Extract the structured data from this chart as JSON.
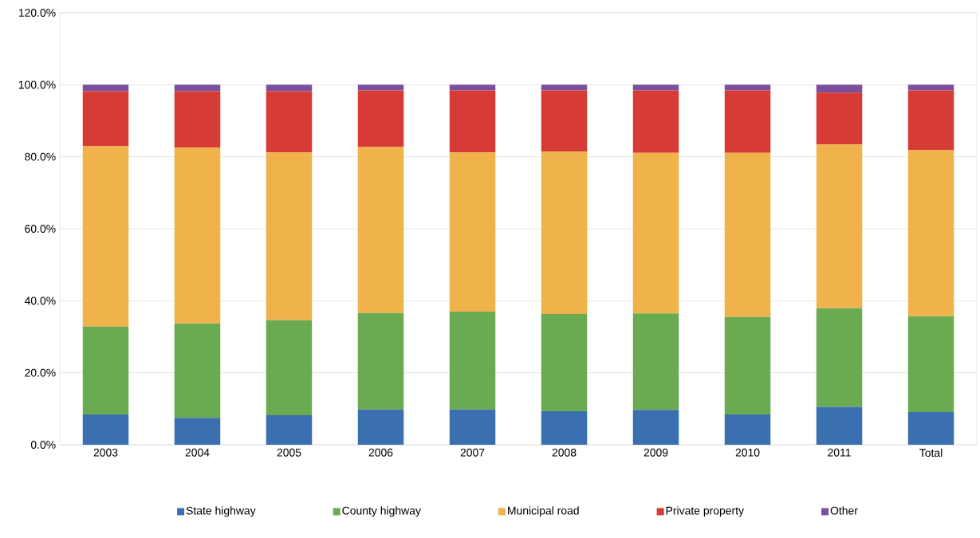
{
  "chart_data": {
    "type": "bar",
    "stacked": true,
    "categories": [
      "2003",
      "2004",
      "2005",
      "2006",
      "2007",
      "2008",
      "2009",
      "2010",
      "2011",
      "Total"
    ],
    "series": [
      {
        "name": "State highway",
        "color": "#3a6fb0",
        "values": [
          8.4,
          7.5,
          8.2,
          9.8,
          9.8,
          9.3,
          9.7,
          8.4,
          10.5,
          9.1
        ]
      },
      {
        "name": "County highway",
        "color": "#6aaa50",
        "values": [
          24.4,
          26.2,
          26.4,
          26.8,
          27.2,
          27.0,
          26.8,
          27.1,
          27.4,
          26.6
        ]
      },
      {
        "name": "Municipal road",
        "color": "#f0b24a",
        "values": [
          50.1,
          48.8,
          46.6,
          46.1,
          44.2,
          45.1,
          44.6,
          45.6,
          45.5,
          46.1
        ]
      },
      {
        "name": "Private property",
        "color": "#d63b36",
        "values": [
          15.3,
          15.7,
          17.0,
          15.7,
          17.2,
          17.0,
          17.3,
          17.3,
          14.4,
          16.6
        ]
      },
      {
        "name": "Other",
        "color": "#7b4f9e",
        "values": [
          1.8,
          1.8,
          1.8,
          1.6,
          1.6,
          1.6,
          1.6,
          1.6,
          2.2,
          1.6
        ]
      }
    ],
    "ylim": [
      0,
      120
    ],
    "yticks": [
      {
        "value": 0,
        "label": "0.0%"
      },
      {
        "value": 20,
        "label": "20.0%"
      },
      {
        "value": 40,
        "label": "40.0%"
      },
      {
        "value": 60,
        "label": "60.0%"
      },
      {
        "value": 80,
        "label": "80.0%"
      },
      {
        "value": 100,
        "label": "100.0%"
      },
      {
        "value": 120,
        "label": "120.0%"
      }
    ],
    "grid": "y",
    "legend": "bottom"
  }
}
